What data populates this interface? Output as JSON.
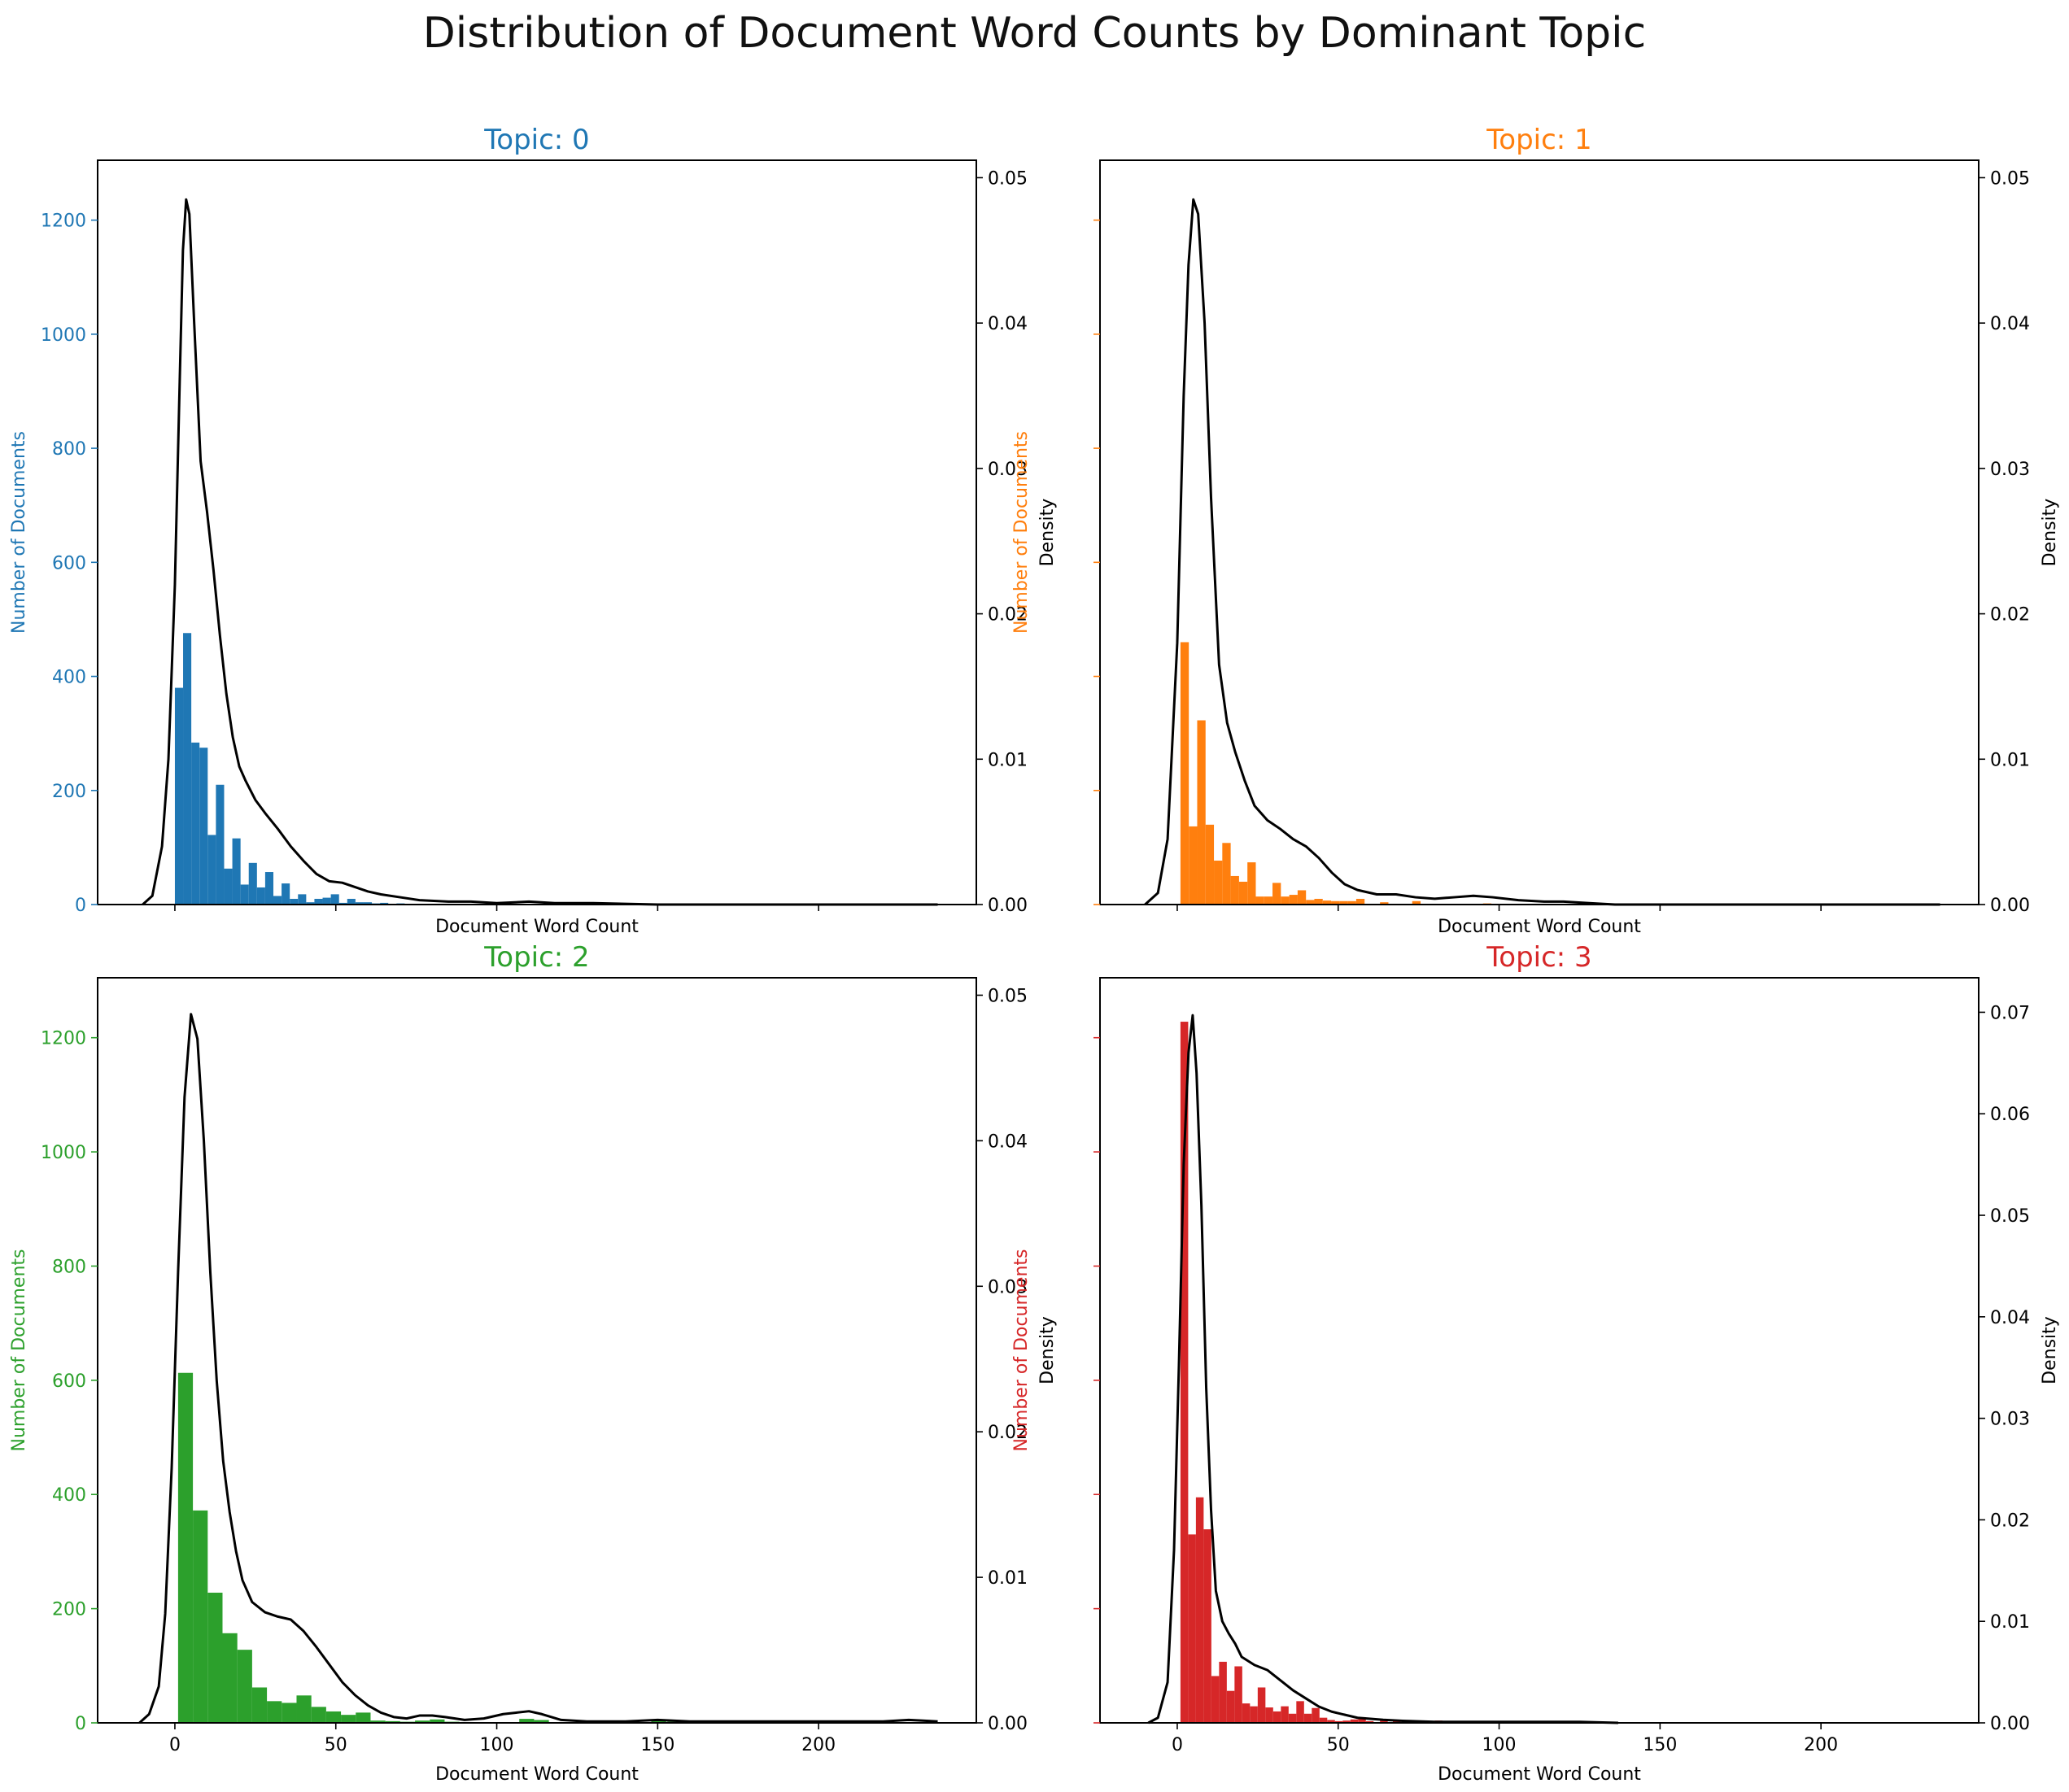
{
  "title": "Distribution of Document Word Counts by Dominant Topic",
  "chart_data": [
    {
      "type": "bar",
      "title": "Topic: 0",
      "color": "#1f77b4",
      "xlabel": "Document Word Count",
      "ylabel": "Number of Documents",
      "ylabel2": "Density",
      "xlim": [
        -24,
        249
      ],
      "ylim": [
        0,
        1305
      ],
      "ylim2": [
        0,
        0.0512
      ],
      "xticks": [
        "0",
        "50",
        "100",
        "150",
        "200"
      ],
      "yticks": [
        "0",
        "200",
        "400",
        "600",
        "800",
        "1000",
        "1200"
      ],
      "yticks2": [
        "0.00",
        "0.01",
        "0.02",
        "0.03",
        "0.04",
        "0.05"
      ],
      "bar_width": 2.55,
      "bars": [
        [
          0,
          380
        ],
        [
          2.55,
          476
        ],
        [
          5.1,
          284
        ],
        [
          7.65,
          275
        ],
        [
          10.2,
          122
        ],
        [
          12.75,
          210
        ],
        [
          15.3,
          63
        ],
        [
          17.85,
          116
        ],
        [
          20.4,
          35
        ],
        [
          22.95,
          73
        ],
        [
          25.5,
          30
        ],
        [
          28.05,
          57
        ],
        [
          30.6,
          15
        ],
        [
          33.15,
          37
        ],
        [
          35.7,
          10
        ],
        [
          38.25,
          18
        ],
        [
          40.8,
          4
        ],
        [
          43.35,
          10
        ],
        [
          45.9,
          12
        ],
        [
          48.45,
          18
        ],
        [
          51.0,
          3
        ],
        [
          53.55,
          10
        ],
        [
          56.1,
          4
        ],
        [
          58.65,
          4
        ],
        [
          61.2,
          2
        ],
        [
          63.75,
          3
        ],
        [
          66.3,
          1
        ],
        [
          68.85,
          2
        ],
        [
          71.4,
          1
        ],
        [
          76.5,
          1
        ],
        [
          94.35,
          1
        ],
        [
          109.65,
          1
        ]
      ],
      "density": [
        [
          -10,
          0
        ],
        [
          -7,
          0.0006
        ],
        [
          -4,
          0.004
        ],
        [
          -2,
          0.01
        ],
        [
          0,
          0.022
        ],
        [
          1.5,
          0.036
        ],
        [
          2.5,
          0.045
        ],
        [
          3.5,
          0.0485
        ],
        [
          4.5,
          0.0475
        ],
        [
          6,
          0.04
        ],
        [
          8,
          0.0305
        ],
        [
          10,
          0.027
        ],
        [
          12,
          0.023
        ],
        [
          14,
          0.0185
        ],
        [
          16,
          0.0145
        ],
        [
          18,
          0.0115
        ],
        [
          20,
          0.0095
        ],
        [
          22,
          0.0085
        ],
        [
          25,
          0.0072
        ],
        [
          28,
          0.0063
        ],
        [
          32,
          0.0052
        ],
        [
          36,
          0.004
        ],
        [
          40,
          0.003
        ],
        [
          44,
          0.0021
        ],
        [
          48,
          0.0016
        ],
        [
          52,
          0.0015
        ],
        [
          56,
          0.0012
        ],
        [
          60,
          0.0009
        ],
        [
          64,
          0.0007
        ],
        [
          70,
          0.0005
        ],
        [
          76,
          0.0003
        ],
        [
          85,
          0.0002
        ],
        [
          92,
          0.0002
        ],
        [
          100,
          0.0001
        ],
        [
          110,
          0.0002
        ],
        [
          118,
          0.0001
        ],
        [
          130,
          0.0001
        ],
        [
          150,
          0
        ],
        [
          237,
          0
        ]
      ]
    },
    {
      "type": "bar",
      "title": "Topic: 1",
      "color": "#ff7f0e",
      "xlabel": "Document Word Count",
      "ylabel": "Number of Documents",
      "ylabel2": "Density",
      "xlim": [
        -24,
        249
      ],
      "ylim": [
        0,
        1305
      ],
      "ylim2": [
        0,
        0.0512
      ],
      "xticks": [
        "0",
        "50",
        "100",
        "150",
        "200"
      ],
      "yticks": [],
      "yticks2": [
        "0.00",
        "0.01",
        "0.02",
        "0.03",
        "0.04",
        "0.05"
      ],
      "bar_width": 2.6,
      "bars": [
        [
          1,
          460
        ],
        [
          3.6,
          137
        ],
        [
          6.2,
          323
        ],
        [
          8.8,
          140
        ],
        [
          11.4,
          77
        ],
        [
          14,
          108
        ],
        [
          16.6,
          50
        ],
        [
          19.2,
          40
        ],
        [
          21.8,
          74
        ],
        [
          24.4,
          14
        ],
        [
          27,
          14
        ],
        [
          29.6,
          38
        ],
        [
          32.2,
          14
        ],
        [
          34.8,
          17
        ],
        [
          37.4,
          25
        ],
        [
          40,
          8
        ],
        [
          42.6,
          10
        ],
        [
          45.2,
          7
        ],
        [
          47.8,
          6
        ],
        [
          50.4,
          6
        ],
        [
          53,
          6
        ],
        [
          55.6,
          10
        ],
        [
          63,
          4
        ],
        [
          73,
          6
        ],
        [
          95,
          2
        ],
        [
          99,
          1
        ],
        [
          103,
          1
        ],
        [
          108,
          1
        ],
        [
          126,
          1
        ]
      ],
      "density": [
        [
          -10,
          0
        ],
        [
          -6,
          0.0008
        ],
        [
          -3,
          0.0045
        ],
        [
          0,
          0.018
        ],
        [
          2,
          0.035
        ],
        [
          3.5,
          0.044
        ],
        [
          5,
          0.0485
        ],
        [
          6.5,
          0.0475
        ],
        [
          8.5,
          0.04
        ],
        [
          10.5,
          0.028
        ],
        [
          13,
          0.0165
        ],
        [
          15.5,
          0.0125
        ],
        [
          18,
          0.0105
        ],
        [
          21,
          0.0085
        ],
        [
          24,
          0.0068
        ],
        [
          28,
          0.0058
        ],
        [
          32,
          0.0052
        ],
        [
          36,
          0.0045
        ],
        [
          40,
          0.004
        ],
        [
          44,
          0.0032
        ],
        [
          48,
          0.0022
        ],
        [
          52,
          0.0014
        ],
        [
          56,
          0.001
        ],
        [
          62,
          0.0007
        ],
        [
          68,
          0.0007
        ],
        [
          74,
          0.0005
        ],
        [
          80,
          0.0004
        ],
        [
          86,
          0.0005
        ],
        [
          92,
          0.0006
        ],
        [
          98,
          0.0005
        ],
        [
          106,
          0.0003
        ],
        [
          114,
          0.0002
        ],
        [
          120,
          0.0002
        ],
        [
          128,
          0.0001
        ],
        [
          136,
          0
        ],
        [
          237,
          0
        ]
      ]
    },
    {
      "type": "bar",
      "title": "Topic: 2",
      "color": "#2ca02c",
      "xlabel": "Document Word Count",
      "ylabel": "Number of Documents",
      "ylabel2": "Density",
      "xlim": [
        -24,
        249
      ],
      "ylim": [
        0,
        1305
      ],
      "ylim2": [
        0,
        0.0512
      ],
      "xticks": [
        "0",
        "50",
        "100",
        "150",
        "200"
      ],
      "yticks": [
        "0",
        "200",
        "400",
        "600",
        "800",
        "1000",
        "1200"
      ],
      "yticks2": [
        "0.00",
        "0.01",
        "0.02",
        "0.03",
        "0.04",
        "0.05"
      ],
      "bar_width": 4.6,
      "bars": [
        [
          1,
          613
        ],
        [
          5.6,
          372
        ],
        [
          10.2,
          228
        ],
        [
          14.8,
          157
        ],
        [
          19.4,
          128
        ],
        [
          24,
          62
        ],
        [
          28.6,
          38
        ],
        [
          33.2,
          35
        ],
        [
          37.8,
          48
        ],
        [
          42.4,
          28
        ],
        [
          47,
          20
        ],
        [
          51.6,
          14
        ],
        [
          56.2,
          18
        ],
        [
          60.8,
          4
        ],
        [
          65.4,
          3
        ],
        [
          70,
          2
        ],
        [
          74.6,
          4
        ],
        [
          79.2,
          6
        ],
        [
          83.8,
          2
        ],
        [
          88.4,
          1
        ],
        [
          107,
          7
        ],
        [
          111.6,
          5
        ],
        [
          148,
          3
        ],
        [
          153,
          2
        ],
        [
          190,
          1
        ]
      ],
      "density": [
        [
          -11,
          0
        ],
        [
          -8,
          0.0006
        ],
        [
          -5,
          0.0025
        ],
        [
          -3,
          0.0075
        ],
        [
          -1,
          0.0175
        ],
        [
          1,
          0.031
        ],
        [
          3,
          0.043
        ],
        [
          5,
          0.0487
        ],
        [
          7,
          0.047
        ],
        [
          9,
          0.04
        ],
        [
          11,
          0.031
        ],
        [
          13,
          0.0235
        ],
        [
          15,
          0.018
        ],
        [
          17,
          0.0145
        ],
        [
          19,
          0.0118
        ],
        [
          21,
          0.0098
        ],
        [
          24,
          0.0083
        ],
        [
          28,
          0.0076
        ],
        [
          32,
          0.0073
        ],
        [
          36,
          0.0071
        ],
        [
          40,
          0.0063
        ],
        [
          44,
          0.0052
        ],
        [
          48,
          0.004
        ],
        [
          52,
          0.0028
        ],
        [
          56,
          0.0019
        ],
        [
          60,
          0.0012
        ],
        [
          64,
          0.0007
        ],
        [
          68,
          0.0004
        ],
        [
          72,
          0.0003
        ],
        [
          76,
          0.0005
        ],
        [
          80,
          0.0005
        ],
        [
          84,
          0.0004
        ],
        [
          90,
          0.0002
        ],
        [
          96,
          0.0003
        ],
        [
          102,
          0.0006
        ],
        [
          106,
          0.0007
        ],
        [
          110,
          0.0008
        ],
        [
          114,
          0.0006
        ],
        [
          120,
          0.0002
        ],
        [
          128,
          0.0001
        ],
        [
          140,
          0.0001
        ],
        [
          150,
          0.0002
        ],
        [
          160,
          0.0001
        ],
        [
          175,
          0.0001
        ],
        [
          190,
          0.0001
        ],
        [
          205,
          0.0001
        ],
        [
          220,
          0.0001
        ],
        [
          228,
          0.0002
        ],
        [
          237,
          0.0001
        ]
      ]
    },
    {
      "type": "bar",
      "title": "Topic: 3",
      "color": "#d62728",
      "xlabel": "Document Word Count",
      "ylabel": "Number of Documents",
      "ylabel2": "Density",
      "xlim": [
        -24,
        249
      ],
      "ylim": [
        0,
        1305
      ],
      "ylim2": [
        0,
        0.0734
      ],
      "xticks": [
        "0",
        "50",
        "100",
        "150",
        "200"
      ],
      "yticks": [],
      "yticks2": [
        "0.00",
        "0.01",
        "0.02",
        "0.03",
        "0.04",
        "0.05",
        "0.06",
        "0.07"
      ],
      "bar_width": 2.4,
      "bars": [
        [
          1,
          1228
        ],
        [
          3.4,
          330
        ],
        [
          5.8,
          395
        ],
        [
          8.2,
          339
        ],
        [
          10.6,
          82
        ],
        [
          13,
          107
        ],
        [
          15.4,
          56
        ],
        [
          17.8,
          99
        ],
        [
          20.2,
          34
        ],
        [
          22.6,
          29
        ],
        [
          25,
          62
        ],
        [
          27.4,
          27
        ],
        [
          29.8,
          20
        ],
        [
          32.2,
          29
        ],
        [
          34.6,
          16
        ],
        [
          37,
          38
        ],
        [
          39.4,
          16
        ],
        [
          41.8,
          26
        ],
        [
          44.2,
          9
        ],
        [
          46.6,
          5
        ],
        [
          49,
          3
        ],
        [
          51.4,
          4
        ],
        [
          53.8,
          6
        ],
        [
          56.2,
          10
        ],
        [
          58.6,
          3
        ],
        [
          63,
          5
        ],
        [
          67,
          4
        ],
        [
          72,
          4
        ],
        [
          76,
          2
        ],
        [
          80,
          4
        ],
        [
          84,
          2
        ],
        [
          124,
          1
        ],
        [
          134,
          1
        ]
      ],
      "density": [
        [
          -9,
          0
        ],
        [
          -6,
          0.0005
        ],
        [
          -3,
          0.004
        ],
        [
          -1,
          0.017
        ],
        [
          0.5,
          0.035
        ],
        [
          2,
          0.055
        ],
        [
          3.5,
          0.066
        ],
        [
          4.8,
          0.0697
        ],
        [
          6,
          0.064
        ],
        [
          7.5,
          0.051
        ],
        [
          9,
          0.033
        ],
        [
          10.5,
          0.021
        ],
        [
          12,
          0.013
        ],
        [
          14,
          0.01
        ],
        [
          16,
          0.0088
        ],
        [
          18,
          0.0078
        ],
        [
          20,
          0.0065
        ],
        [
          24,
          0.0057
        ],
        [
          28,
          0.0052
        ],
        [
          32,
          0.0042
        ],
        [
          36,
          0.0032
        ],
        [
          40,
          0.0024
        ],
        [
          44,
          0.0016
        ],
        [
          48,
          0.0011
        ],
        [
          52,
          0.0008
        ],
        [
          56,
          0.0005
        ],
        [
          60,
          0.0004
        ],
        [
          64,
          0.0003
        ],
        [
          70,
          0.0002
        ],
        [
          80,
          0.0001
        ],
        [
          90,
          0.0001
        ],
        [
          100,
          0.0001
        ],
        [
          115,
          0.0001
        ],
        [
          125,
          0.0001
        ],
        [
          137,
          0
        ]
      ]
    }
  ]
}
